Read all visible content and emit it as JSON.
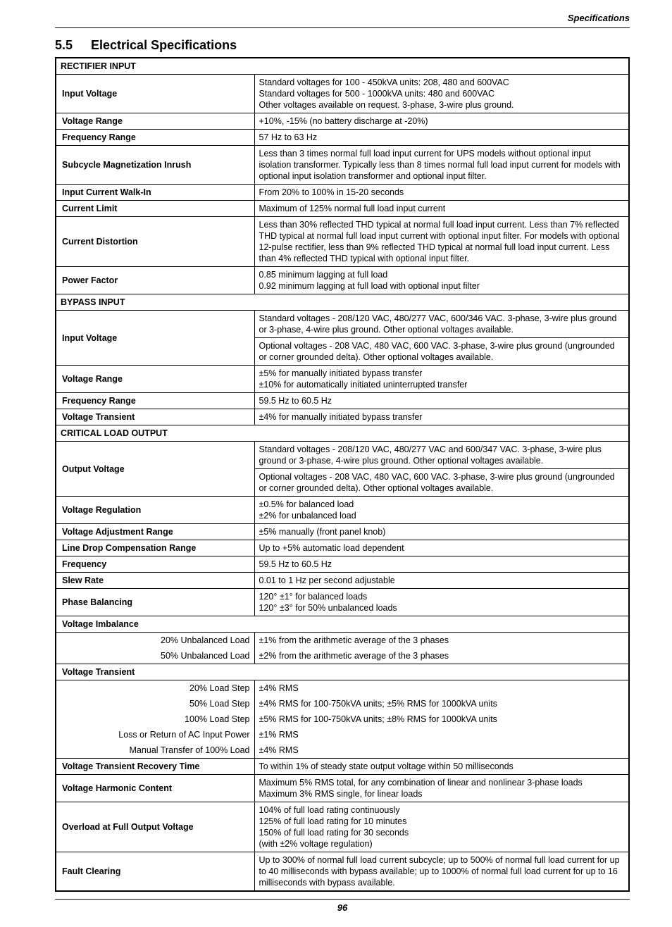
{
  "header": {
    "topright": "Specifications"
  },
  "title": {
    "number": "5.5",
    "text": "Electrical Specifications"
  },
  "sections": {
    "rectifier": {
      "header": "RECTIFIER INPUT",
      "input_voltage": {
        "label": "Input Voltage",
        "value": "Standard voltages for 100 - 450kVA units: 208, 480 and 600VAC\nStandard voltages for 500 - 1000kVA units: 480 and 600VAC\nOther voltages available on request. 3-phase, 3-wire plus ground."
      },
      "voltage_range": {
        "label": "Voltage Range",
        "value": "+10%, -15% (no battery discharge at -20%)"
      },
      "frequency_range": {
        "label": "Frequency Range",
        "value": "57 Hz to 63 Hz"
      },
      "subcycle": {
        "label": "Subcycle Magnetization Inrush",
        "value": "Less than 3 times normal full load input current for UPS models without optional input isolation transformer. Typically less than 8 times normal full load input current for models with optional input isolation transformer and optional input filter."
      },
      "walkin": {
        "label": "Input Current Walk-In",
        "value": "From 20% to 100% in 15-20 seconds"
      },
      "current_limit": {
        "label": "Current Limit",
        "value": "Maximum of 125% normal full load input current"
      },
      "distortion": {
        "label": "Current Distortion",
        "value": "Less than 30% reflected THD typical at normal full load input current. Less than 7% reflected THD typical at normal full load input current with optional input filter. For models with optional 12-pulse rectifier, less than 9% reflected THD typical at normal full load input current. Less than 4% reflected THD typical with optional input filter."
      },
      "pf": {
        "label": "Power Factor",
        "value": "0.85 minimum lagging at full load\n0.92 minimum lagging at full load with optional input filter"
      }
    },
    "bypass": {
      "header": "BYPASS INPUT",
      "input_voltage": {
        "label": "Input Voltage",
        "value1": "Standard voltages - 208/120 VAC, 480/277 VAC, 600/346 VAC.  3-phase, 3-wire plus ground or 3-phase, 4-wire plus ground. Other optional voltages available.",
        "value2": "Optional voltages - 208 VAC, 480 VAC, 600 VAC.  3-phase, 3-wire plus ground (ungrounded or corner grounded delta). Other optional voltages available."
      },
      "voltage_range": {
        "label": "Voltage Range",
        "value": "±5% for manually initiated bypass transfer\n±10% for automatically initiated uninterrupted transfer"
      },
      "frequency_range": {
        "label": "Frequency Range",
        "value": "59.5 Hz to 60.5 Hz"
      },
      "voltage_transient": {
        "label": "Voltage Transient",
        "value": "±4% for manually initiated bypass transfer"
      }
    },
    "critical": {
      "header": "CRITICAL LOAD OUTPUT",
      "output_voltage": {
        "label": "Output Voltage",
        "value1": "Standard voltages - 208/120 VAC, 480/277 VAC and 600/347 VAC. 3-phase, 3-wire plus ground or 3-phase, 4-wire plus ground. Other optional voltages available.",
        "value2": "Optional voltages - 208 VAC, 480 VAC, 600 VAC. 3-phase, 3-wire plus ground (ungrounded or corner grounded delta). Other optional voltages available."
      },
      "regulation": {
        "label": "Voltage Regulation",
        "value": "±0.5% for balanced load\n±2% for unbalanced load"
      },
      "adj_range": {
        "label": "Voltage Adjustment Range",
        "value": "±5% manually (front panel knob)"
      },
      "line_drop": {
        "label": "Line Drop Compensation Range",
        "value": "Up to +5% automatic load dependent"
      },
      "frequency": {
        "label": "Frequency",
        "value": "59.5 Hz to 60.5 Hz"
      },
      "slew": {
        "label": "Slew Rate",
        "value": "0.01 to 1 Hz per second adjustable"
      },
      "phase_bal": {
        "label": "Phase Balancing",
        "value": "120° ±1° for balanced loads\n120° ±3° for 50% unbalanced loads"
      },
      "voltage_imbalance": {
        "header": "Voltage Imbalance",
        "r1": {
          "label": "20% Unbalanced Load",
          "value": "±1% from the arithmetic average of the 3 phases"
        },
        "r2": {
          "label": "50% Unbalanced Load",
          "value": "±2% from the arithmetic average of the 3 phases"
        }
      },
      "voltage_transient": {
        "header": "Voltage Transient",
        "r1": {
          "label": "20% Load Step",
          "value": "±4% RMS"
        },
        "r2": {
          "label": "50% Load Step",
          "value": "±4% RMS for 100-750kVA units; ±5% RMS for 1000kVA units"
        },
        "r3": {
          "label": "100% Load Step",
          "value": "±5% RMS for 100-750kVA units; ±8% RMS for 1000kVA units"
        },
        "r4": {
          "label": "Loss or Return of AC Input Power",
          "value": "±1% RMS"
        },
        "r5": {
          "label": "Manual Transfer of 100% Load",
          "value": "±4% RMS"
        }
      },
      "recovery": {
        "label": "Voltage Transient Recovery Time",
        "value": "To within 1% of steady state output voltage within 50 milliseconds"
      },
      "harmonic": {
        "label": "Voltage Harmonic Content",
        "value": "Maximum 5% RMS total, for any combination of linear and nonlinear 3-phase loads\nMaximum 3% RMS single, for linear loads"
      },
      "overload": {
        "label": "Overload at Full Output Voltage",
        "value": "104% of full load rating continuously\n125% of full load rating for 10 minutes\n150% of full load rating for 30 seconds\n(with ±2% voltage regulation)"
      },
      "fault": {
        "label": "Fault Clearing",
        "value": "Up to 300% of normal full load current subcycle; up to 500% of normal full load current for up to 40 milliseconds with bypass available; up to 1000% of normal full load current for up to 16 milliseconds with bypass available."
      }
    }
  },
  "footer": {
    "page": "96"
  }
}
